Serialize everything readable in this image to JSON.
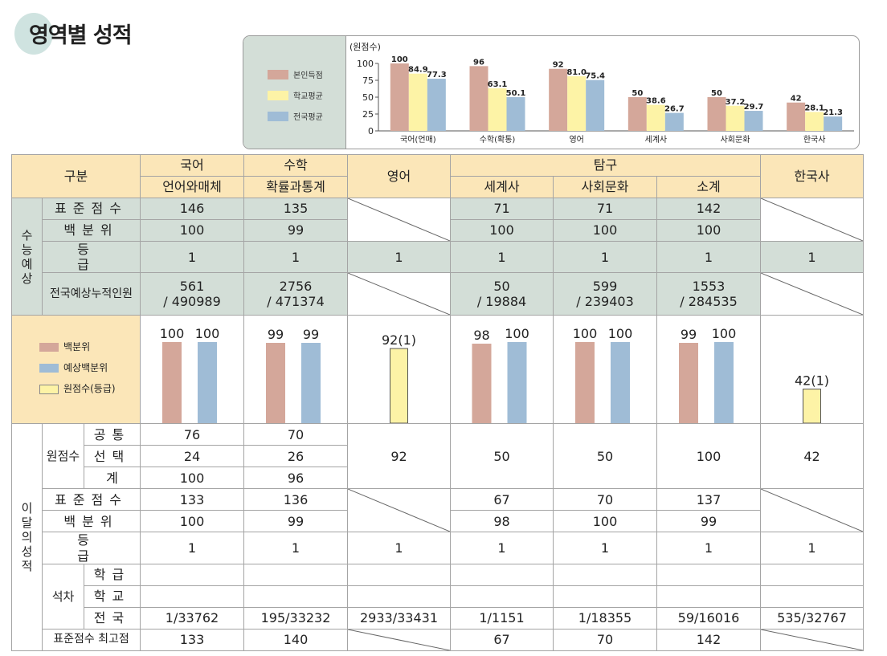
{
  "title": "영역별 성적",
  "chart": {
    "legend": [
      "본인득점",
      "학교평균",
      "전국평균"
    ],
    "colors": [
      "#d4a79a",
      "#fdf3a6",
      "#9fbcd6"
    ],
    "yaxis_title": "(원점수)",
    "yticks": [
      "100",
      "75",
      "50",
      "25",
      "0"
    ]
  },
  "chart_data": {
    "type": "bar",
    "categories": [
      "국어(언매)",
      "수학(확통)",
      "영어",
      "세계사",
      "사회문화",
      "한국사"
    ],
    "series": [
      {
        "name": "본인득점",
        "values": [
          100,
          96,
          92,
          50,
          50,
          42
        ],
        "labels": [
          "100",
          "96",
          "92",
          "50",
          "50",
          "42"
        ]
      },
      {
        "name": "학교평균",
        "values": [
          84.9,
          63.1,
          81.0,
          38.6,
          37.2,
          28.1
        ],
        "labels": [
          "84.9",
          "63.1",
          "81.0",
          "38.6",
          "37.2",
          "28.1"
        ]
      },
      {
        "name": "전국평균",
        "values": [
          77.3,
          50.1,
          75.4,
          26.7,
          29.7,
          21.3
        ],
        "labels": [
          "77.3",
          "50.1",
          "75.4",
          "26.7",
          "29.7",
          "21.3"
        ]
      }
    ],
    "ylabel": "(원점수)",
    "ylim": [
      0,
      100
    ]
  },
  "table": {
    "gubun": "구분",
    "subjects": {
      "korean": "국어",
      "math": "수학",
      "english": "영어",
      "inquiry": "탐구",
      "history": "한국사"
    },
    "subs": {
      "korean": "언어와매체",
      "math": "확률과통계",
      "world": "세계사",
      "social": "사회문화",
      "total": "소계"
    },
    "exp_section": "수능예상",
    "exp_rows": [
      {
        "label": "표준점수",
        "values": [
          "146",
          "135",
          "",
          "71",
          "71",
          "142",
          ""
        ]
      },
      {
        "label": "백분위",
        "values": [
          "100",
          "99",
          "",
          "100",
          "100",
          "100",
          ""
        ]
      },
      {
        "label": "등급",
        "values": [
          "1",
          "1",
          "1",
          "1",
          "1",
          "1",
          "1"
        ]
      }
    ],
    "cum_label": "전국예상누적인원",
    "cum": [
      [
        "561",
        "/ 490989"
      ],
      [
        "2756",
        "/ 471374"
      ],
      [
        "50",
        "/ 19884"
      ],
      [
        "599",
        "/ 239403"
      ],
      [
        "1553",
        "/ 284535"
      ]
    ],
    "mini_legend": [
      "백분위",
      "예상백분위",
      "원점수(등급)"
    ],
    "mini": [
      {
        "a": "100",
        "b": "100"
      },
      {
        "a": "99",
        "b": "99"
      },
      {
        "c": "92(1)"
      },
      {
        "a": "98",
        "b": "100"
      },
      {
        "a": "100",
        "b": "100"
      },
      {
        "a": "99",
        "b": "100"
      },
      {
        "c": "42(1)"
      }
    ],
    "month_section": "이달의성적",
    "raw_label": "원점수",
    "raw_rows": [
      {
        "label": "공통",
        "values": [
          "76",
          "70"
        ]
      },
      {
        "label": "선택",
        "values": [
          "24",
          "26"
        ]
      },
      {
        "label": "계",
        "values": [
          "100",
          "96"
        ]
      }
    ],
    "raw_others": [
      "92",
      "50",
      "50",
      "100",
      "42"
    ],
    "std": {
      "label": "표준점수",
      "values": [
        "133",
        "136",
        "67",
        "70",
        "137"
      ]
    },
    "pct": {
      "label": "백분위",
      "values": [
        "100",
        "99",
        "98",
        "100",
        "99"
      ]
    },
    "grade": {
      "label": "등급",
      "values": [
        "1",
        "1",
        "1",
        "1",
        "1",
        "1",
        "1"
      ]
    },
    "rank_label": "석차",
    "rank_rows": [
      {
        "label": "학급",
        "values": [
          "",
          "",
          "",
          "",
          "",
          "",
          ""
        ]
      },
      {
        "label": "학교",
        "values": [
          "",
          "",
          "",
          "",
          "",
          "",
          ""
        ]
      },
      {
        "label": "전국",
        "values": [
          "1/33762",
          "195/33232",
          "2933/33431",
          "1/1151",
          "1/18355",
          "59/16016",
          "535/32767"
        ]
      }
    ],
    "max": {
      "label": "표준점수 최고점",
      "values": [
        "133",
        "140",
        "67",
        "70",
        "142"
      ]
    }
  }
}
